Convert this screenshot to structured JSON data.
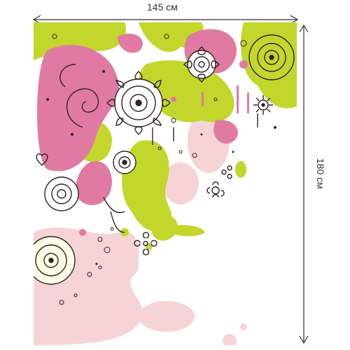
{
  "dimensions": {
    "width_label": "145 см",
    "height_label": "180 см"
  },
  "colors": {
    "pink": "#e07aa3",
    "light_pink": "#f6d4d6",
    "lime": "#c2d62b",
    "line": "#2e2424",
    "arrow": "#333333",
    "background": "#ffffff"
  },
  "icons": {
    "pattern": "floral-doodle-splash",
    "width_dimension": "double-arrow-horizontal",
    "height_dimension": "double-arrow-vertical"
  }
}
